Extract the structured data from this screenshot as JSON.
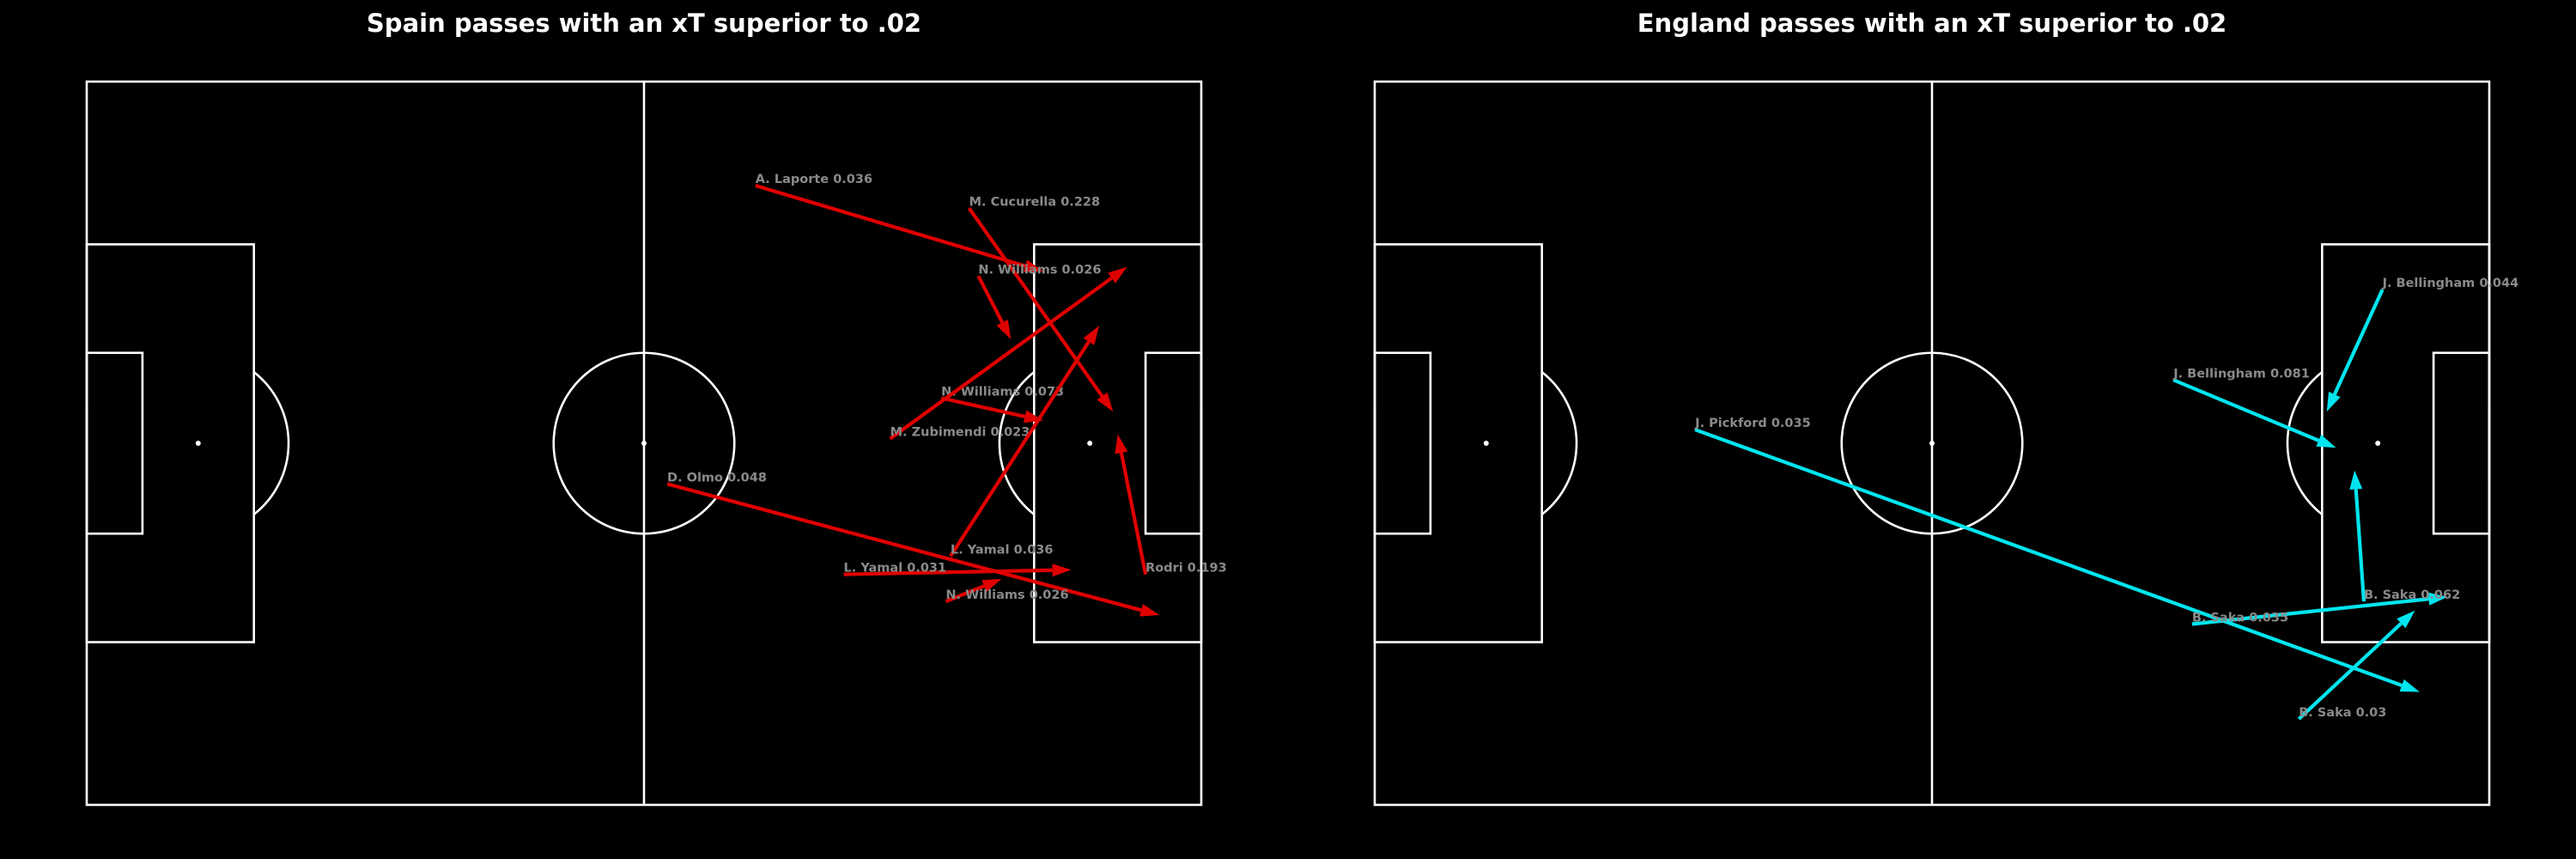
{
  "colors": {
    "background": "#000000",
    "pitch_lines": "#ffffff",
    "label": "#8a8a8a"
  },
  "chart_data": [
    {
      "type": "pass-map",
      "title": "Spain passes with an xT superior to .02",
      "arrow_color": "#e00000",
      "pitch_length": 120,
      "pitch_width": 80,
      "passes": [
        {
          "player": "A. Laporte",
          "xt": "0.036",
          "x": 72.0,
          "y": 11.5,
          "end_x": 103.0,
          "end_y": 21.0
        },
        {
          "player": "M. Cucurella",
          "xt": "0.228",
          "x": 95.0,
          "y": 14.0,
          "end_x": 110.5,
          "end_y": 36.5
        },
        {
          "player": "N. Williams",
          "xt": "0.026",
          "x": 96.0,
          "y": 21.5,
          "end_x": 99.5,
          "end_y": 28.5
        },
        {
          "player": "N. Williams",
          "xt": "0.073",
          "x": 92.0,
          "y": 35.0,
          "end_x": 103.0,
          "end_y": 37.5
        },
        {
          "player": "M. Zubimendi",
          "xt": "0.023",
          "x": 86.5,
          "y": 39.5,
          "end_x": 112.0,
          "end_y": 20.5
        },
        {
          "player": "D. Olmo",
          "xt": "0.048",
          "x": 62.5,
          "y": 44.5,
          "end_x": 115.5,
          "end_y": 59.0
        },
        {
          "player": "L. Yamal",
          "xt": "0.036",
          "x": 93.0,
          "y": 52.5,
          "end_x": 109.0,
          "end_y": 27.0
        },
        {
          "player": "L. Yamal",
          "xt": "0.031",
          "x": 81.5,
          "y": 54.5,
          "end_x": 106.0,
          "end_y": 54.0
        },
        {
          "player": "N. Williams",
          "xt": "0.026",
          "x": 92.5,
          "y": 57.5,
          "end_x": 98.5,
          "end_y": 55.0
        },
        {
          "player": "Rodri",
          "xt": "0.193",
          "x": 114.0,
          "y": 54.5,
          "end_x": 111.0,
          "end_y": 39.0
        }
      ]
    },
    {
      "type": "pass-map",
      "title": "England passes with an xT superior to .02",
      "arrow_color": "#00e5ee",
      "pitch_length": 120,
      "pitch_width": 80,
      "passes": [
        {
          "player": "J. Bellingham",
          "xt": "0.044",
          "x": 108.5,
          "y": 23.0,
          "end_x": 102.5,
          "end_y": 36.5
        },
        {
          "player": "J. Bellingham",
          "xt": "0.081",
          "x": 86.0,
          "y": 33.0,
          "end_x": 103.5,
          "end_y": 40.5
        },
        {
          "player": "J. Pickford",
          "xt": "0.035",
          "x": 34.5,
          "y": 38.5,
          "end_x": 112.5,
          "end_y": 67.5
        },
        {
          "player": "B. Saka",
          "xt": "0.035",
          "x": 88.0,
          "y": 60.0,
          "end_x": 115.5,
          "end_y": 57.0
        },
        {
          "player": "B. Saka",
          "xt": "0.062",
          "x": 106.5,
          "y": 57.5,
          "end_x": 105.5,
          "end_y": 43.0
        },
        {
          "player": "B. Saka",
          "xt": "0.03",
          "x": 99.5,
          "y": 70.5,
          "end_x": 112.0,
          "end_y": 58.5
        }
      ]
    }
  ]
}
